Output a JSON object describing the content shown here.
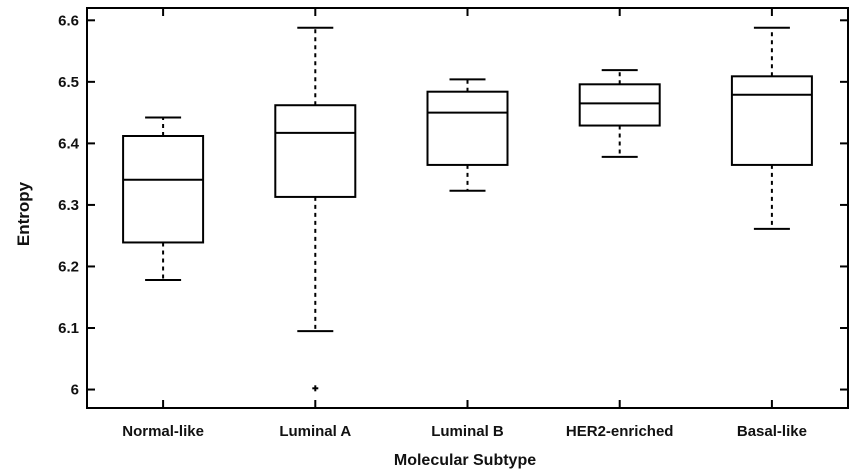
{
  "chart_data": {
    "type": "box",
    "title": "",
    "xlabel": "Molecular Subtype",
    "ylabel": "Entropy",
    "ylim": [
      5.97,
      6.62
    ],
    "yticks": [
      6,
      6.1,
      6.2,
      6.3,
      6.4,
      6.5,
      6.6
    ],
    "ytick_labels": [
      "6",
      "6.1",
      "6.2",
      "6.3",
      "6.4",
      "6.5",
      "6.6"
    ],
    "grid": false,
    "categories": [
      "Normal-like",
      "Luminal A",
      "Luminal B",
      "HER2-enriched",
      "Basal-like"
    ],
    "boxes": [
      {
        "category": "Normal-like",
        "whisker_low": 6.178,
        "q1": 6.239,
        "median": 6.341,
        "q3": 6.412,
        "whisker_high": 6.442,
        "outliers": []
      },
      {
        "category": "Luminal A",
        "whisker_low": 6.095,
        "q1": 6.313,
        "median": 6.417,
        "q3": 6.462,
        "whisker_high": 6.588,
        "outliers": [
          6.002
        ]
      },
      {
        "category": "Luminal B",
        "whisker_low": 6.323,
        "q1": 6.365,
        "median": 6.45,
        "q3": 6.484,
        "whisker_high": 6.504,
        "outliers": []
      },
      {
        "category": "HER2-enriched",
        "whisker_low": 6.378,
        "q1": 6.429,
        "median": 6.465,
        "q3": 6.496,
        "whisker_high": 6.519,
        "outliers": []
      },
      {
        "category": "Basal-like",
        "whisker_low": 6.261,
        "q1": 6.365,
        "median": 6.479,
        "q3": 6.509,
        "whisker_high": 6.588,
        "outliers": []
      }
    ]
  }
}
